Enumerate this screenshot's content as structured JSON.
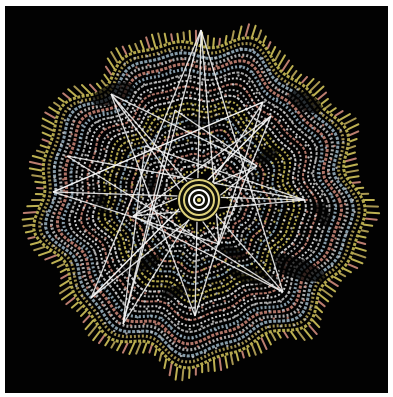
{
  "artwork": {
    "subject": "radial-ring-string-art",
    "colors": {
      "background": "#020202",
      "frame": "#ffffff",
      "rings": [
        "#d2c45b",
        "#bba85a",
        "#9fb7c7",
        "#c9c9c9",
        "#d08b7b",
        "#efefef"
      ],
      "star_lines": "#f6f6f6",
      "core_gold": "#e0d37c",
      "core_white": "#ffffff"
    }
  }
}
